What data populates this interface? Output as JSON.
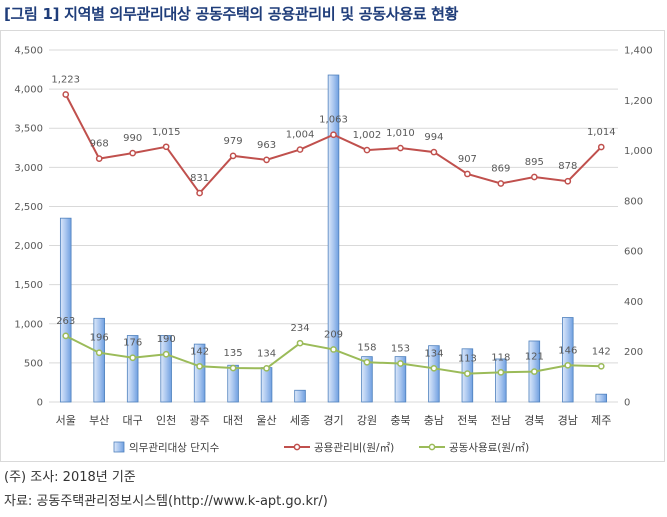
{
  "title": "[그림 1] 지역별 의무관리대상 공동주택의 공용관리비 및 공동사용료 현황",
  "notes": {
    "survey": "(주) 조사: 2018년 기준",
    "source": "자료: 공동주택관리정보시스템(http://www.k-apt.go.kr/)"
  },
  "colors": {
    "bar": "#6f9fe0",
    "line_mgmt": "#c0504d",
    "line_usage": "#9bbb59",
    "title": "#1f3d7a"
  },
  "chart_data": {
    "type": "bar",
    "categories": [
      "서울",
      "부산",
      "대구",
      "인천",
      "광주",
      "대전",
      "울산",
      "세종",
      "경기",
      "강원",
      "충북",
      "충남",
      "전북",
      "전남",
      "경북",
      "경남",
      "제주"
    ],
    "left_axis": {
      "ylim": [
        0,
        4500
      ],
      "ticks": [
        0,
        500,
        1000,
        1500,
        2000,
        2500,
        3000,
        3500,
        4000,
        4500
      ],
      "tick_labels": [
        "0",
        "500",
        "1,000",
        "1,500",
        "2,000",
        "2,500",
        "3,000",
        "3,500",
        "4,000",
        "4,500"
      ]
    },
    "right_axis": {
      "ylim": [
        0,
        1400
      ],
      "ticks": [
        0,
        200,
        400,
        600,
        800,
        1000,
        1200,
        1400
      ],
      "tick_labels": [
        "0",
        "200",
        "400",
        "600",
        "800",
        "1,000",
        "1,200",
        "1,400"
      ]
    },
    "grid": true,
    "legend_position": "bottom",
    "series": [
      {
        "name": "의무관리대상 단지수",
        "type": "bar",
        "axis": "left",
        "values": [
          2350,
          1070,
          850,
          850,
          740,
          470,
          440,
          150,
          4180,
          580,
          580,
          720,
          680,
          550,
          780,
          1080,
          100
        ]
      },
      {
        "name": "공용관리비(원/㎡)",
        "type": "line",
        "axis": "right",
        "values": [
          1223,
          968,
          990,
          1015,
          831,
          979,
          963,
          1004,
          1063,
          1002,
          1010,
          994,
          907,
          869,
          895,
          878,
          1014
        ],
        "labels": [
          "1,223",
          "968",
          "990",
          "1,015",
          "831",
          "979",
          "963",
          "1,004",
          "1,063",
          "1,002",
          "1,010",
          "994",
          "907",
          "869",
          "895",
          "878",
          "1,014"
        ]
      },
      {
        "name": "공동사용료(원/㎡)",
        "type": "line",
        "axis": "right",
        "values": [
          263,
          196,
          176,
          190,
          142,
          135,
          134,
          234,
          209,
          158,
          153,
          134,
          113,
          118,
          121,
          146,
          142
        ],
        "labels": [
          "263",
          "196",
          "176",
          "190",
          "142",
          "135",
          "134",
          "234",
          "209",
          "158",
          "153",
          "134",
          "113",
          "118",
          "121",
          "146",
          "142"
        ]
      }
    ]
  }
}
